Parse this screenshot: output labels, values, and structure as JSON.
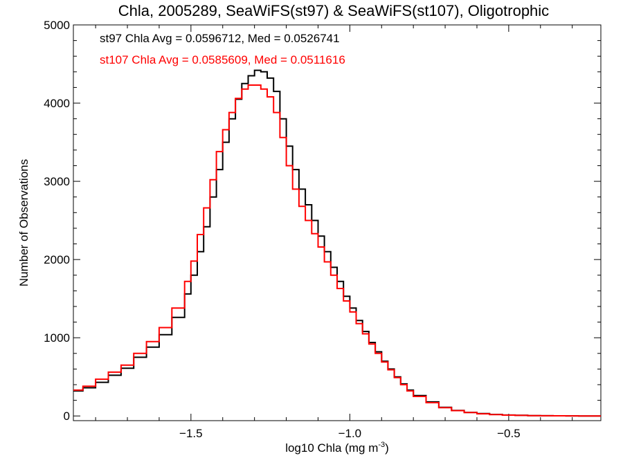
{
  "chart_data": {
    "type": "line",
    "title": "Chla, 2005289, SeaWiFS(st97) & SeaWiFS(st107), Oligotrophic",
    "xlabel": "log10 Chla (mg m",
    "xlabel_sup": "-3",
    "xlabel_close": ")",
    "ylabel": "Number of Observations",
    "xlim": [
      -1.87,
      -0.21
    ],
    "ylim": [
      -60,
      5000
    ],
    "x_ticks": [
      -1.5,
      -1.0,
      -0.5
    ],
    "x_tick_labels": [
      "−1.5",
      "−1.0",
      "−0.5"
    ],
    "y_ticks": [
      0,
      1000,
      2000,
      3000,
      4000,
      5000
    ],
    "y_tick_labels": [
      "0",
      "1000",
      "2000",
      "3000",
      "4000",
      "5000"
    ],
    "grid": false,
    "annotations": [
      {
        "text": "st97 Chla Avg = 0.0596712, Med = 0.0526741",
        "color": "#000000"
      },
      {
        "text": "st107 Chla Avg = 0.0585609, Med = 0.0511616",
        "color": "#ff0000"
      }
    ],
    "style": "step",
    "series": [
      {
        "color": "#000000",
        "x": [
          -1.87,
          -1.84,
          -1.8,
          -1.76,
          -1.72,
          -1.68,
          -1.64,
          -1.6,
          -1.56,
          -1.52,
          -1.5,
          -1.48,
          -1.46,
          -1.44,
          -1.42,
          -1.4,
          -1.38,
          -1.36,
          -1.34,
          -1.32,
          -1.3,
          -1.28,
          -1.26,
          -1.24,
          -1.22,
          -1.2,
          -1.18,
          -1.16,
          -1.14,
          -1.12,
          -1.1,
          -1.08,
          -1.06,
          -1.04,
          -1.02,
          -1.0,
          -0.98,
          -0.96,
          -0.94,
          -0.92,
          -0.9,
          -0.88,
          -0.86,
          -0.84,
          -0.82,
          -0.8,
          -0.76,
          -0.72,
          -0.68,
          -0.64,
          -0.6,
          -0.56,
          -0.52,
          -0.48,
          -0.44,
          -0.4,
          -0.36,
          -0.32,
          -0.28,
          -0.21
        ],
        "y": [
          320,
          360,
          430,
          520,
          610,
          750,
          880,
          1040,
          1260,
          1560,
          1800,
          2100,
          2420,
          2800,
          3150,
          3500,
          3800,
          4050,
          4250,
          4350,
          4420,
          4400,
          4320,
          4150,
          3800,
          3450,
          3150,
          2900,
          2700,
          2500,
          2300,
          2100,
          1900,
          1720,
          1530,
          1380,
          1220,
          1080,
          940,
          820,
          700,
          600,
          500,
          410,
          330,
          260,
          180,
          110,
          70,
          45,
          30,
          20,
          12,
          8,
          5,
          3,
          2,
          1,
          0,
          0
        ]
      },
      {
        "color": "#ff0000",
        "x": [
          -1.87,
          -1.84,
          -1.8,
          -1.76,
          -1.72,
          -1.68,
          -1.64,
          -1.6,
          -1.56,
          -1.52,
          -1.5,
          -1.48,
          -1.46,
          -1.44,
          -1.42,
          -1.4,
          -1.38,
          -1.36,
          -1.34,
          -1.32,
          -1.3,
          -1.28,
          -1.26,
          -1.24,
          -1.22,
          -1.2,
          -1.18,
          -1.16,
          -1.14,
          -1.12,
          -1.1,
          -1.08,
          -1.06,
          -1.04,
          -1.02,
          -1.0,
          -0.98,
          -0.96,
          -0.94,
          -0.92,
          -0.9,
          -0.88,
          -0.86,
          -0.84,
          -0.82,
          -0.8,
          -0.76,
          -0.72,
          -0.68,
          -0.64,
          -0.6,
          -0.56,
          -0.52,
          -0.48,
          -0.44,
          -0.4,
          -0.36,
          -0.32,
          -0.28,
          -0.21
        ],
        "y": [
          330,
          380,
          470,
          560,
          650,
          800,
          950,
          1130,
          1380,
          1720,
          1980,
          2320,
          2660,
          3020,
          3380,
          3660,
          3880,
          4060,
          4180,
          4230,
          4230,
          4180,
          4080,
          3880,
          3560,
          3200,
          2900,
          2680,
          2500,
          2330,
          2160,
          1970,
          1800,
          1630,
          1470,
          1330,
          1180,
          1050,
          920,
          800,
          690,
          590,
          490,
          400,
          320,
          250,
          170,
          105,
          68,
          44,
          28,
          18,
          11,
          7,
          4,
          3,
          2,
          1,
          0,
          0
        ]
      }
    ]
  }
}
